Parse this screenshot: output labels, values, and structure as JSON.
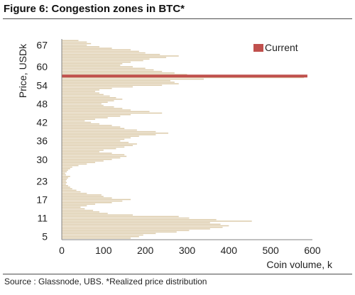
{
  "figure": {
    "title": "Figure 6: Congestion zones in BTC*",
    "source": "Source : Glassnode, UBS. *Realized price distribution"
  },
  "chart_data": {
    "type": "bar",
    "orientation": "horizontal",
    "title": "",
    "xlabel": "Coin volume, k",
    "ylabel": "Price, USDk",
    "xlim": [
      0,
      600
    ],
    "x_ticks": [
      "0",
      "100",
      "200",
      "300",
      "400",
      "500",
      "600"
    ],
    "ylim": [
      4,
      69
    ],
    "y_ticks": [
      "5",
      "11",
      "17",
      "23",
      "30",
      "36",
      "42",
      "48",
      "54",
      "60",
      "67"
    ],
    "y_tick_values": [
      5,
      11,
      17,
      23,
      30,
      36,
      42,
      48,
      54,
      60,
      67
    ],
    "grid": false,
    "legend": {
      "position": "top-right",
      "entries": [
        "Current"
      ]
    },
    "colors": {
      "distribution": "#dccbaa",
      "current": "#c0504d",
      "axis": "#808080"
    },
    "series": [
      {
        "name": "",
        "price": [
          4.5,
          5.0,
          5.5,
          6.0,
          6.5,
          7.0,
          7.5,
          8.0,
          8.5,
          9.0,
          9.5,
          10.0,
          10.5,
          11.0,
          11.5,
          12.0,
          12.5,
          13.0,
          13.5,
          14.0,
          14.5,
          15.0,
          15.5,
          16.0,
          16.5,
          17.0,
          17.5,
          18.0,
          18.5,
          19.0,
          19.5,
          20.0,
          20.5,
          21.0,
          21.5,
          22.0,
          22.5,
          23.0,
          23.5,
          24.0,
          24.5,
          25.0,
          25.5,
          26.0,
          26.5,
          27.0,
          27.5,
          28.0,
          28.5,
          29.0,
          29.5,
          30.0,
          30.5,
          31.0,
          31.5,
          32.0,
          32.5,
          33.0,
          33.5,
          34.0,
          34.5,
          35.0,
          35.5,
          36.0,
          36.5,
          37.0,
          37.5,
          38.0,
          38.5,
          39.0,
          39.5,
          40.0,
          40.5,
          41.0,
          41.5,
          42.0,
          42.5,
          43.0,
          43.5,
          44.0,
          44.5,
          45.0,
          45.5,
          46.0,
          46.5,
          47.0,
          47.5,
          48.0,
          48.5,
          49.0,
          49.5,
          50.0,
          50.5,
          51.0,
          51.5,
          52.0,
          52.5,
          53.0,
          53.5,
          54.0,
          54.5,
          55.0,
          55.5,
          56.0,
          56.5,
          57.0,
          57.5,
          58.0,
          58.5,
          59.0,
          59.5,
          60.0,
          60.5,
          61.0,
          61.5,
          62.0,
          62.5,
          63.0,
          63.5,
          64.0,
          64.5,
          65.0,
          65.5,
          66.0,
          66.5,
          67.0,
          67.5,
          68.0,
          68.5
        ],
        "volume": [
          165,
          185,
          195,
          225,
          275,
          305,
          355,
          385,
          400,
          380,
          355,
          455,
          370,
          305,
          280,
          170,
          110,
          90,
          75,
          55,
          45,
          60,
          80,
          120,
          145,
          165,
          120,
          100,
          95,
          60,
          45,
          35,
          25,
          20,
          15,
          10,
          12,
          10,
          12,
          15,
          20,
          10,
          8,
          12,
          15,
          20,
          25,
          40,
          60,
          80,
          100,
          120,
          140,
          155,
          150,
          120,
          90,
          100,
          130,
          150,
          170,
          180,
          160,
          140,
          150,
          165,
          185,
          225,
          255,
          225,
          180,
          150,
          140,
          120,
          90,
          70,
          55,
          80,
          110,
          140,
          165,
          240,
          210,
          165,
          145,
          125,
          100,
          95,
          110,
          125,
          145,
          130,
          115,
          100,
          90,
          80,
          90,
          120,
          170,
          240,
          280,
          270,
          260,
          340,
          580,
          360,
          300,
          270,
          240,
          220,
          200,
          170,
          140,
          145,
          165,
          195,
          210,
          250,
          280,
          235,
          200,
          185,
          165,
          120,
          90,
          60,
          70,
          60,
          40
        ]
      },
      {
        "name": "Current",
        "price": [
          57.0
        ],
        "volume": [
          588
        ]
      }
    ]
  }
}
